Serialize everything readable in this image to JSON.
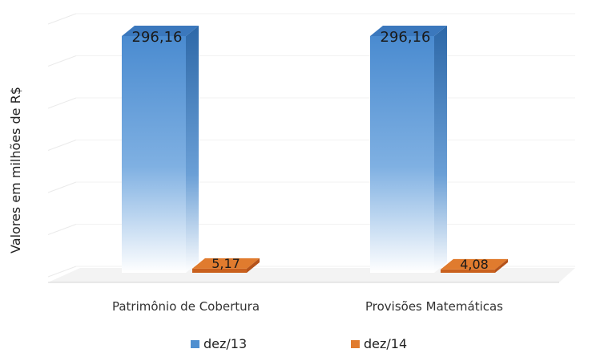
{
  "chart_data": {
    "type": "bar",
    "title": "",
    "xlabel": "",
    "ylabel": "Valores em milhões de R$",
    "categories": [
      "Patrimônio de Cobertura",
      "Provisões Matemáticas"
    ],
    "series": [
      {
        "name": "dez/13",
        "values": [
          296.16,
          296.16
        ],
        "labels": [
          "296,16",
          "296,16"
        ],
        "color": "#4f8fd0"
      },
      {
        "name": "dez/14",
        "values": [
          5.17,
          4.08
        ],
        "labels": [
          "5,17",
          "4,08"
        ],
        "color": "#e07b2e"
      }
    ],
    "ylim": [
      0,
      296.16
    ],
    "grid": true,
    "legend": "bottom",
    "three_d": true
  }
}
